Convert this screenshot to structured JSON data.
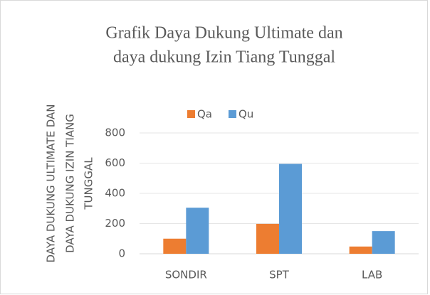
{
  "chart_data": {
    "type": "bar",
    "title": [
      "Grafik Daya Dukung Ultimate dan",
      "daya dukung Izin Tiang Tunggal"
    ],
    "ylabel": [
      "DAYA DUKUNG ULTIMATE DAN",
      "DAYA DUKUNG IZIN TIANG",
      "TUNGGAL"
    ],
    "categories": [
      "SONDIR",
      "SPT",
      "LAB"
    ],
    "series": [
      {
        "name": "Qa",
        "color": "#ED7D31",
        "values": [
          100,
          198,
          48
        ]
      },
      {
        "name": "Qu",
        "color": "#5B9BD5",
        "values": [
          305,
          595,
          150
        ]
      }
    ],
    "ylim": [
      0,
      800
    ],
    "yticks": [
      0,
      200,
      400,
      600,
      800
    ],
    "grid": true,
    "legend": "top"
  }
}
